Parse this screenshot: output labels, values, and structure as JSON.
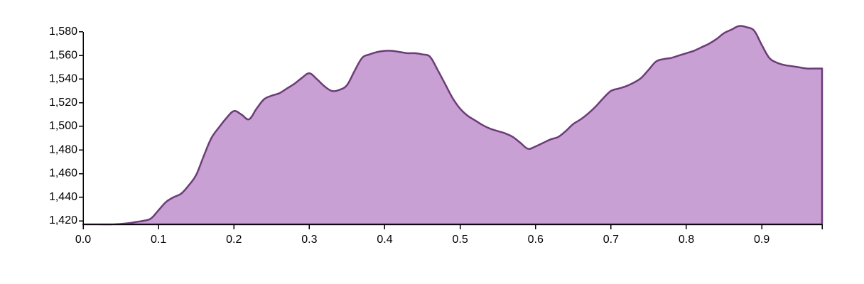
{
  "colors": {
    "area_fill": "#c9a0d3",
    "area_stroke": "#6b3d78",
    "axis": "#000000",
    "background": "#ffffff"
  },
  "chart_data": {
    "type": "area",
    "title": "",
    "xlabel": "",
    "ylabel": "",
    "xlim": [
      0,
      0.98
    ],
    "ylim": [
      1417,
      1586
    ],
    "grid": false,
    "x_ticks": [
      "0.0",
      "0.1",
      "0.2",
      "0.3",
      "0.4",
      "0.5",
      "0.6",
      "0.7",
      "0.8",
      "0.9"
    ],
    "x_tick_values": [
      0,
      0.1,
      0.2,
      0.3,
      0.4,
      0.5,
      0.6,
      0.7,
      0.8,
      0.9
    ],
    "y_ticks": [
      "1,420",
      "1,440",
      "1,460",
      "1,480",
      "1,500",
      "1,520",
      "1,540",
      "1,560",
      "1,580"
    ],
    "y_tick_values": [
      1420,
      1440,
      1460,
      1480,
      1500,
      1520,
      1540,
      1560,
      1580
    ],
    "series": [
      {
        "x": [
          0.0,
          0.02,
          0.04,
          0.06,
          0.07,
          0.08,
          0.09,
          0.1,
          0.11,
          0.12,
          0.13,
          0.14,
          0.15,
          0.16,
          0.17,
          0.18,
          0.19,
          0.2,
          0.21,
          0.22,
          0.23,
          0.24,
          0.25,
          0.26,
          0.27,
          0.28,
          0.29,
          0.3,
          0.31,
          0.32,
          0.33,
          0.34,
          0.35,
          0.36,
          0.37,
          0.38,
          0.39,
          0.4,
          0.41,
          0.42,
          0.43,
          0.44,
          0.45,
          0.46,
          0.47,
          0.48,
          0.49,
          0.5,
          0.51,
          0.52,
          0.53,
          0.54,
          0.55,
          0.56,
          0.57,
          0.58,
          0.59,
          0.6,
          0.61,
          0.62,
          0.63,
          0.64,
          0.65,
          0.66,
          0.67,
          0.68,
          0.69,
          0.7,
          0.71,
          0.72,
          0.73,
          0.74,
          0.75,
          0.76,
          0.77,
          0.78,
          0.79,
          0.8,
          0.81,
          0.82,
          0.83,
          0.84,
          0.85,
          0.86,
          0.87,
          0.88,
          0.89,
          0.9,
          0.91,
          0.92,
          0.93,
          0.94,
          0.95,
          0.96,
          0.97,
          0.98
        ],
        "y": [
          1417,
          1417,
          1417,
          1418,
          1419,
          1420,
          1422,
          1429,
          1436,
          1440,
          1443,
          1450,
          1459,
          1475,
          1490,
          1499,
          1507,
          1513,
          1510,
          1506,
          1515,
          1523,
          1526,
          1528,
          1532,
          1536,
          1541,
          1545,
          1540,
          1534,
          1530,
          1531,
          1535,
          1547,
          1558,
          1561,
          1563,
          1564,
          1564,
          1563,
          1562,
          1562,
          1561,
          1559,
          1548,
          1536,
          1524,
          1515,
          1509,
          1505,
          1501,
          1498,
          1496,
          1494,
          1491,
          1486,
          1481,
          1483,
          1486,
          1489,
          1491,
          1496,
          1502,
          1506,
          1511,
          1517,
          1524,
          1530,
          1532,
          1534,
          1537,
          1541,
          1548,
          1555,
          1557,
          1558,
          1560,
          1562,
          1564,
          1567,
          1570,
          1574,
          1579,
          1582,
          1585,
          1584,
          1581,
          1569,
          1558,
          1554,
          1552,
          1551,
          1550,
          1549,
          1549,
          1549
        ]
      }
    ]
  }
}
